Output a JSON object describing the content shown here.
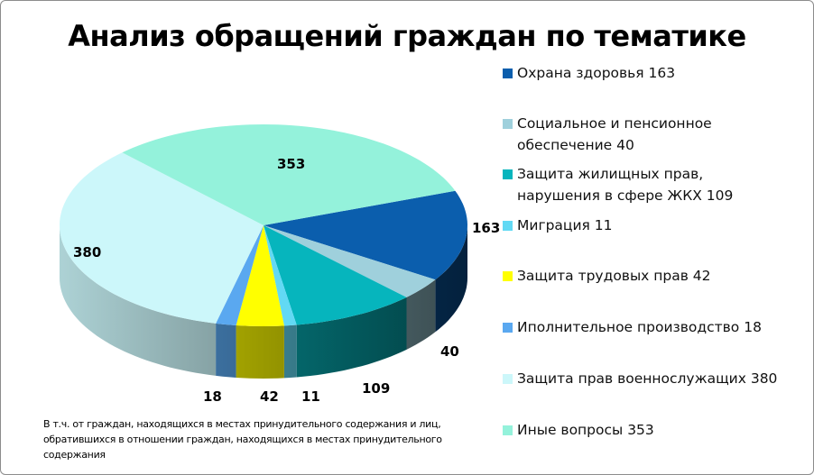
{
  "chart_data": {
    "type": "pie",
    "title": "Анализ обращений граждан по тематике",
    "categories": [
      "Охрана здоровья",
      "Социальное и пенсионное обеспечение",
      "Защита жилищных прав, нарушения в сфере ЖКХ",
      "Миграция",
      "Защита трудовых прав",
      "Иполнительное производство",
      "Защита прав военнослужащих",
      "Иные вопросы"
    ],
    "values": [
      163,
      40,
      109,
      11,
      42,
      18,
      380,
      353
    ],
    "data_labels": [
      "163",
      "40",
      "109",
      "11",
      "42",
      "18",
      "380",
      "353"
    ],
    "legend_entries": [
      "Охрана здоровья 163",
      "Социальное и пенсионное обеспечение 40",
      "Защита жилищных прав, нарушения в сфере ЖКХ 109",
      "Миграция 11",
      "Защита трудовых прав 42",
      "Иполнительное производство 18",
      "Защита прав военнослужащих 380",
      "Иные вопросы 353"
    ],
    "colors": [
      "#0b5ead",
      "#9fd0dc",
      "#06b5bd",
      "#62d9f4",
      "#ffff00",
      "#5aa8f0",
      "#ccf7fa",
      "#94f2db"
    ],
    "legend_position": "right",
    "style": "3d",
    "footnote": "В т.ч. от граждан, находящихся в местах принудительного содержания и лиц, обратившихся в отношении граждан, находящихся в местах принудительного содержания"
  }
}
